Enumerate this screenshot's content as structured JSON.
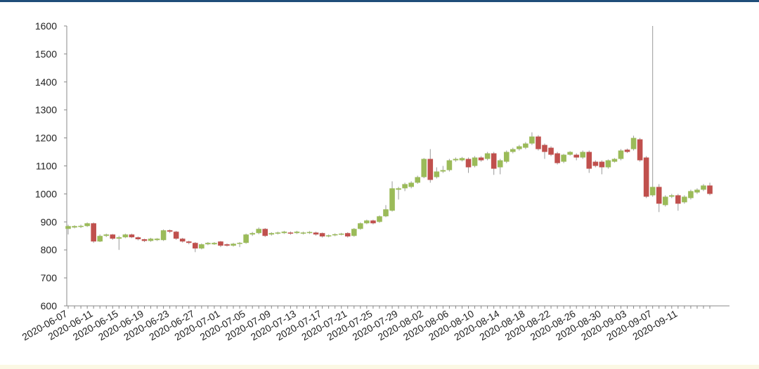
{
  "chart_data": {
    "type": "candlestick",
    "categories": [
      "2020-06-07",
      null,
      null,
      null,
      "2020-06-11",
      null,
      null,
      null,
      "2020-06-15",
      null,
      null,
      null,
      "2020-06-19",
      null,
      null,
      null,
      "2020-06-23",
      null,
      null,
      null,
      "2020-06-27",
      null,
      null,
      null,
      "2020-07-01",
      null,
      null,
      null,
      "2020-07-05",
      null,
      null,
      null,
      "2020-07-09",
      null,
      null,
      null,
      "2020-07-13",
      null,
      null,
      null,
      "2020-07-17",
      null,
      null,
      null,
      "2020-07-21",
      null,
      null,
      null,
      "2020-07-25",
      null,
      null,
      null,
      "2020-07-29",
      null,
      null,
      null,
      "2020-08-02",
      null,
      null,
      null,
      "2020-08-06",
      null,
      null,
      null,
      "2020-08-10",
      null,
      null,
      null,
      "2020-08-14",
      null,
      null,
      null,
      "2020-08-18",
      null,
      null,
      null,
      "2020-08-22",
      null,
      null,
      null,
      "2020-08-26",
      null,
      null,
      null,
      "2020-08-30",
      null,
      null,
      null,
      "2020-09-03",
      null,
      null,
      null,
      "2020-09-07",
      null,
      null,
      null,
      "2020-09-11",
      null,
      null,
      null,
      null,
      null
    ],
    "open": [
      875,
      880,
      882,
      885,
      895,
      830,
      850,
      855,
      840,
      845,
      855,
      845,
      838,
      832,
      835,
      835,
      870,
      865,
      840,
      830,
      825,
      805,
      820,
      820,
      830,
      820,
      815,
      822,
      825,
      855,
      860,
      875,
      855,
      858,
      860,
      862,
      860,
      858,
      860,
      862,
      860,
      848,
      852,
      855,
      860,
      850,
      875,
      895,
      905,
      900,
      920,
      940,
      1015,
      1020,
      1025,
      1040,
      1060,
      1125,
      1060,
      1080,
      1085,
      1120,
      1120,
      1125,
      1100,
      1130,
      1125,
      1145,
      1095,
      1115,
      1150,
      1160,
      1165,
      1180,
      1205,
      1175,
      1165,
      1145,
      1115,
      1140,
      1140,
      1130,
      1150,
      1115,
      1115,
      1095,
      1115,
      1125,
      1158,
      1160,
      1195,
      1130,
      995,
      1025,
      960,
      990,
      995,
      970,
      985,
      1005,
      1015,
      1030
    ],
    "high": [
      890,
      888,
      890,
      898,
      898,
      855,
      858,
      857,
      850,
      858,
      858,
      848,
      840,
      843,
      842,
      873,
      873,
      868,
      843,
      833,
      828,
      823,
      828,
      828,
      832,
      823,
      825,
      828,
      858,
      864,
      880,
      878,
      863,
      865,
      868,
      866,
      868,
      865,
      867,
      865,
      862,
      855,
      859,
      861,
      863,
      878,
      898,
      908,
      908,
      923,
      960,
      1045,
      1025,
      1040,
      1045,
      1065,
      1128,
      1160,
      1095,
      1100,
      1125,
      1130,
      1132,
      1130,
      1135,
      1135,
      1150,
      1150,
      1125,
      1155,
      1165,
      1175,
      1185,
      1220,
      1210,
      1180,
      1170,
      1150,
      1143,
      1153,
      1145,
      1155,
      1155,
      1120,
      1120,
      1123,
      1128,
      1160,
      1162,
      1208,
      1200,
      1135,
      1600,
      1035,
      995,
      1000,
      1000,
      995,
      1015,
      1020,
      1035,
      1040
    ],
    "low": [
      855,
      877,
      878,
      882,
      825,
      828,
      846,
      836,
      800,
      842,
      842,
      834,
      828,
      829,
      832,
      832,
      860,
      836,
      826,
      820,
      792,
      802,
      817,
      818,
      810,
      812,
      812,
      810,
      822,
      850,
      856,
      846,
      851,
      855,
      857,
      854,
      857,
      855,
      857,
      851,
      844,
      845,
      849,
      852,
      844,
      847,
      872,
      892,
      891,
      897,
      917,
      937,
      980,
      1010,
      1020,
      1036,
      1056,
      1040,
      1055,
      1075,
      1080,
      1115,
      1116,
      1075,
      1095,
      1115,
      1120,
      1068,
      1070,
      1110,
      1145,
      1155,
      1160,
      1175,
      1155,
      1125,
      1135,
      1105,
      1110,
      1137,
      1120,
      1125,
      1075,
      1095,
      1070,
      1090,
      1112,
      1120,
      1146,
      1155,
      1115,
      985,
      990,
      935,
      955,
      985,
      940,
      965,
      980,
      1000,
      1010,
      995
    ],
    "close": [
      885,
      885,
      886,
      895,
      830,
      850,
      855,
      840,
      845,
      855,
      845,
      838,
      832,
      840,
      840,
      870,
      865,
      840,
      830,
      825,
      805,
      820,
      825,
      825,
      815,
      815,
      822,
      825,
      855,
      860,
      875,
      850,
      860,
      862,
      865,
      858,
      865,
      862,
      864,
      855,
      848,
      852,
      856,
      858,
      848,
      875,
      895,
      905,
      895,
      920,
      945,
      1020,
      1020,
      1035,
      1040,
      1060,
      1125,
      1050,
      1080,
      1085,
      1120,
      1125,
      1128,
      1095,
      1130,
      1120,
      1145,
      1090,
      1120,
      1150,
      1160,
      1170,
      1180,
      1205,
      1160,
      1150,
      1140,
      1110,
      1140,
      1150,
      1130,
      1150,
      1090,
      1100,
      1095,
      1120,
      1125,
      1155,
      1150,
      1200,
      1120,
      990,
      1025,
      965,
      990,
      995,
      965,
      990,
      1010,
      1015,
      1030,
      1000
    ],
    "up_color": "#9bbb59",
    "down_color": "#c0504d",
    "ylim": [
      600,
      1600
    ],
    "yticks": [
      600,
      700,
      800,
      900,
      1000,
      1100,
      1200,
      1300,
      1400,
      1500,
      1600
    ]
  }
}
